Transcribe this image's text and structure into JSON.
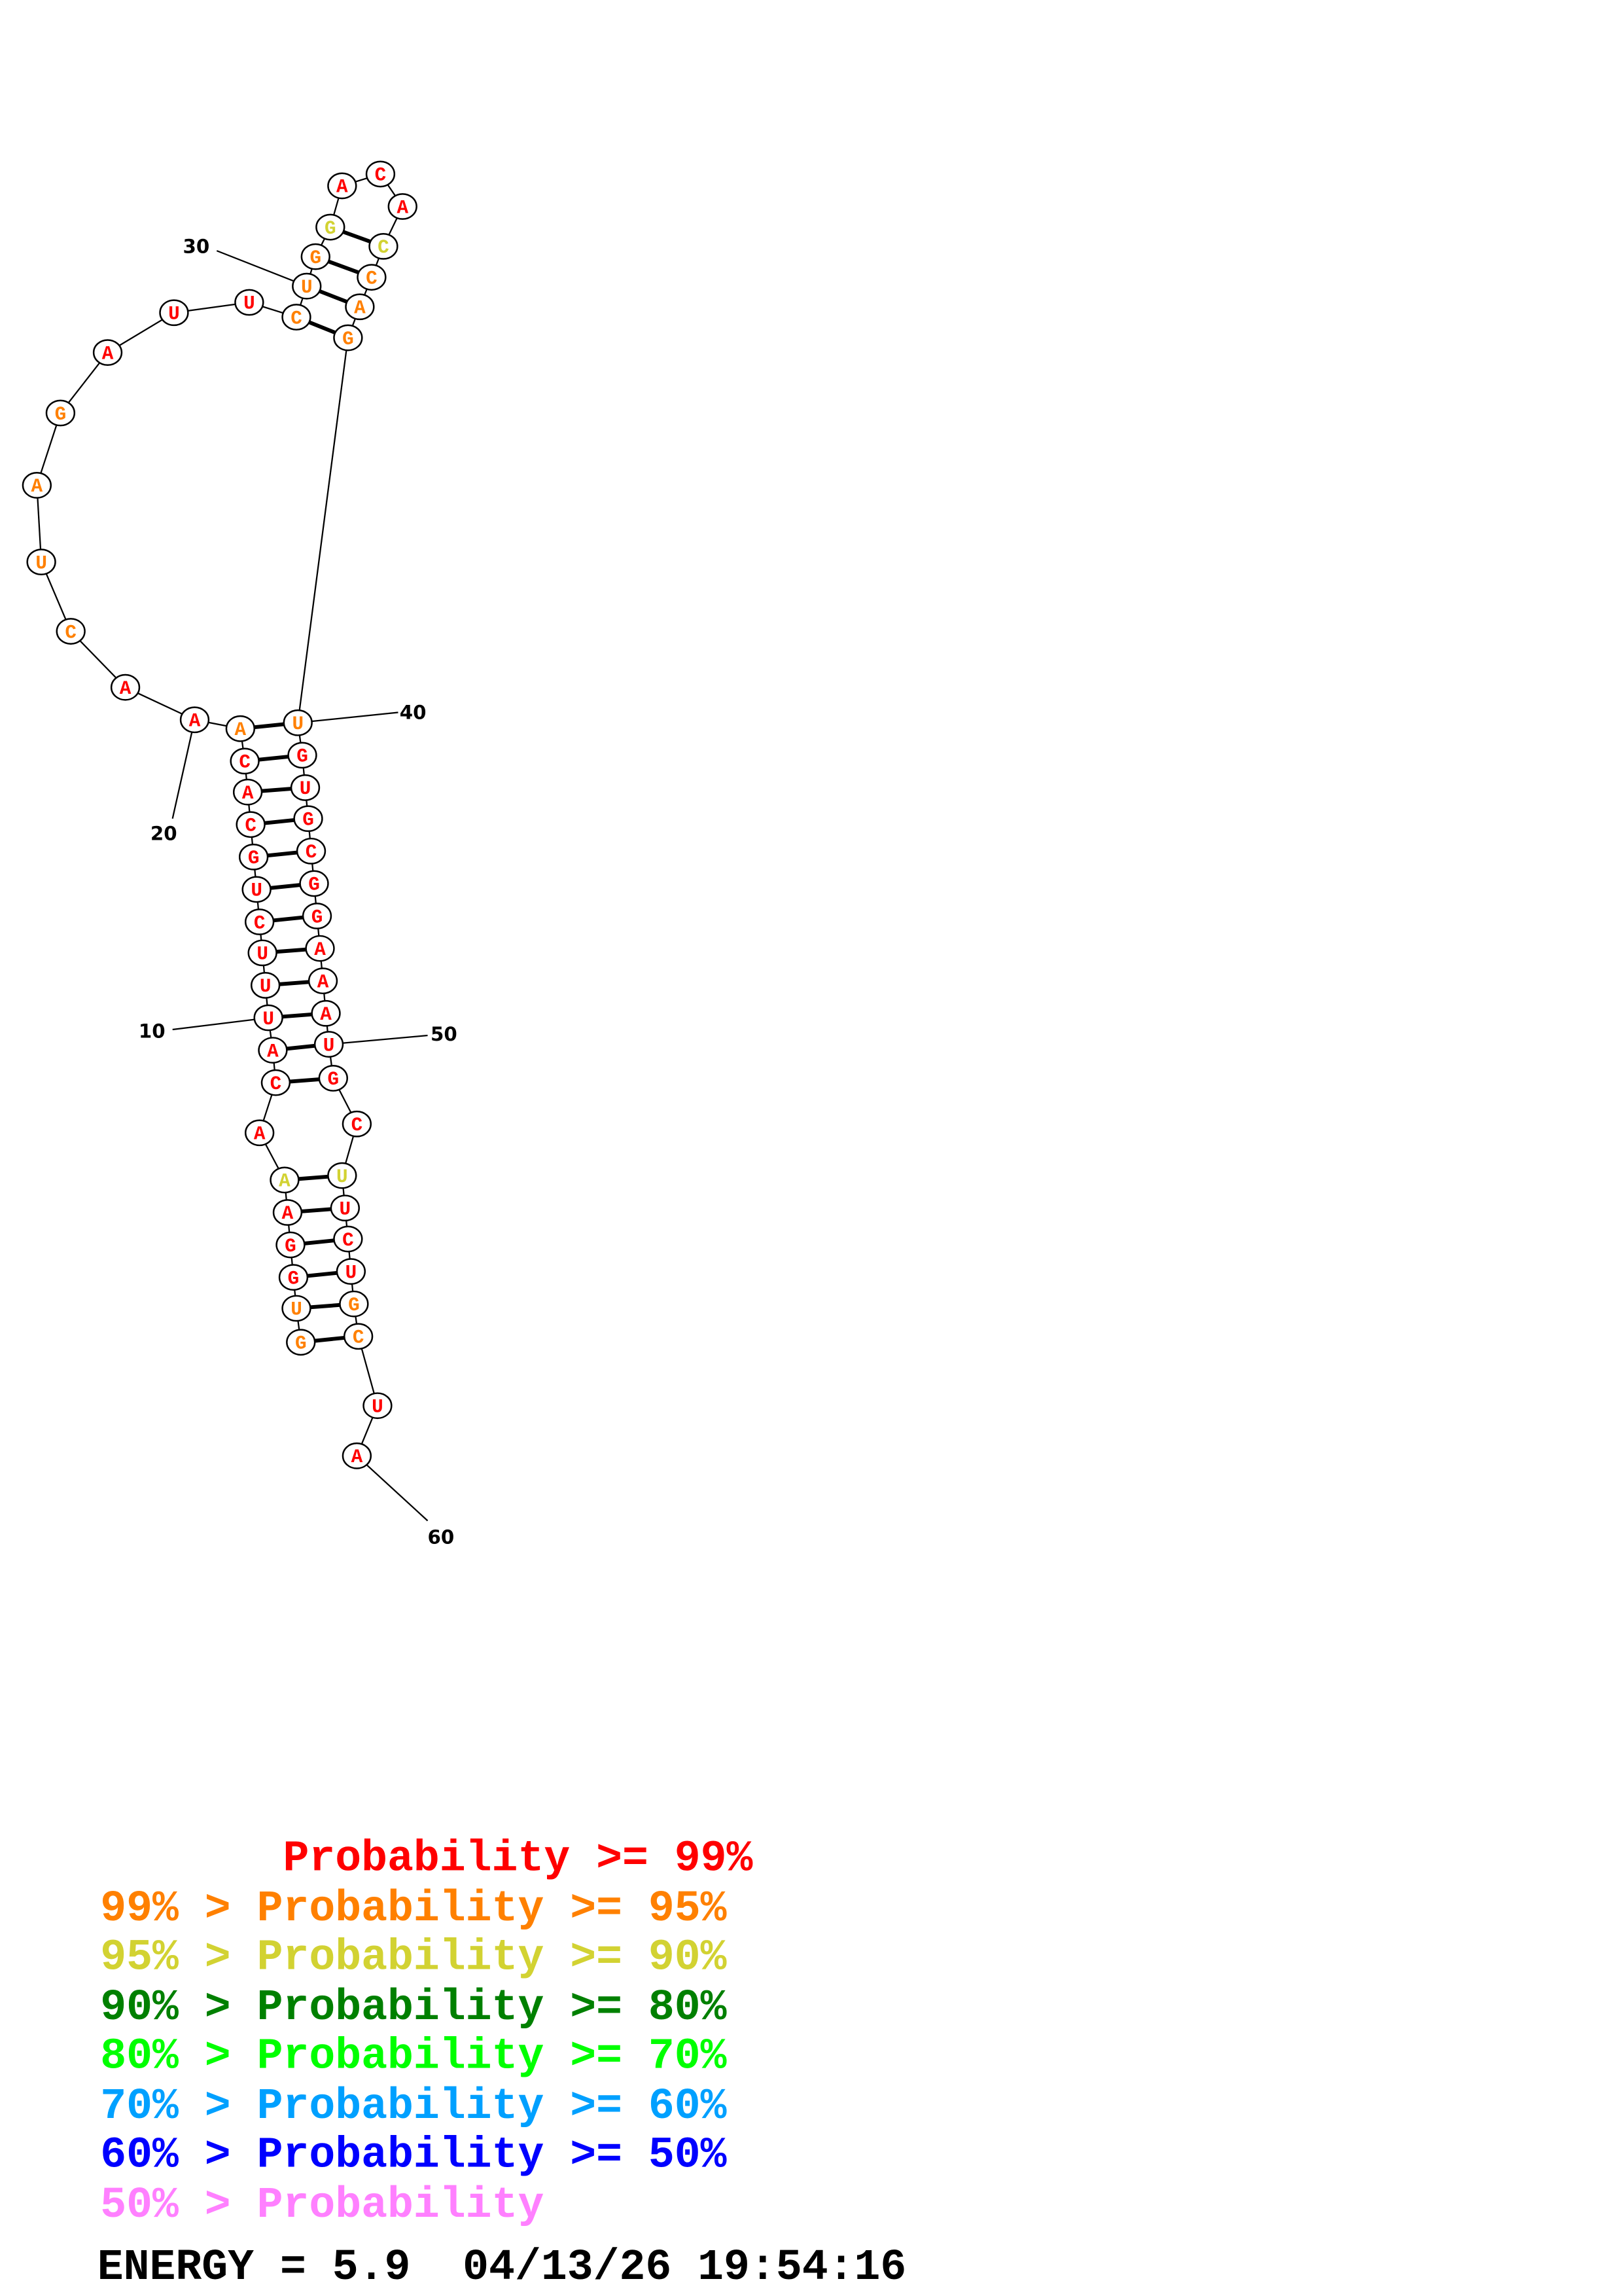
{
  "structure": {
    "sequence": "GUGGAAACAUUUCUGCACAAACUAGAUUCUGGACACCAGUGUGCGGAAAUGCUUCUGCUA",
    "probability_class": [
      1,
      1,
      0,
      0,
      0,
      2,
      0,
      0,
      0,
      0,
      0,
      0,
      0,
      0,
      0,
      0,
      0,
      0,
      1,
      0,
      0,
      1,
      1,
      1,
      1,
      0,
      0,
      0,
      1,
      1,
      1,
      2,
      0,
      0,
      0,
      2,
      1,
      1,
      1,
      1,
      0,
      0,
      0,
      0,
      0,
      0,
      0,
      0,
      0,
      0,
      0,
      0,
      2,
      0,
      0,
      0,
      1,
      1,
      0,
      0
    ],
    "pairs": [
      [
        1,
        58
      ],
      [
        2,
        57
      ],
      [
        3,
        56
      ],
      [
        4,
        55
      ],
      [
        5,
        54
      ],
      [
        6,
        53
      ],
      [
        8,
        51
      ],
      [
        9,
        50
      ],
      [
        10,
        49
      ],
      [
        11,
        48
      ],
      [
        12,
        47
      ],
      [
        13,
        46
      ],
      [
        14,
        45
      ],
      [
        15,
        44
      ],
      [
        16,
        43
      ],
      [
        17,
        42
      ],
      [
        18,
        41
      ],
      [
        19,
        40
      ],
      [
        29,
        39
      ],
      [
        30,
        38
      ],
      [
        31,
        37
      ],
      [
        32,
        36
      ]
    ],
    "position_labels": [
      "10",
      "20",
      "30",
      "40",
      "50",
      "60"
    ]
  },
  "legend": {
    "colors": [
      "#ff0000",
      "#ff8000",
      "#d2d232",
      "#008000",
      "#00ff00",
      "#00a0ff",
      "#0000ff",
      "#ff80ff"
    ],
    "rows": [
      "       Probability >= 99%",
      "99% > Probability >= 95%",
      "95% > Probability >= 90%",
      "90% > Probability >= 80%",
      "80% > Probability >= 70%",
      "70% > Probability >= 60%",
      "60% > Probability >= 50%",
      "50% > Probability"
    ]
  },
  "footer": {
    "energy_line": "ENERGY = 5.9  04/13/26 19:54:16"
  }
}
